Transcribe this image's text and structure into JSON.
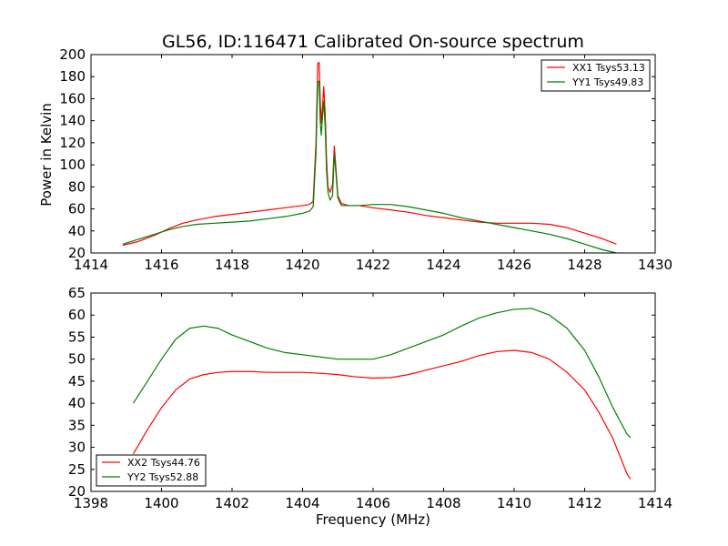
{
  "chart_data": [
    {
      "type": "line",
      "title": "GL56, ID:116471 Calibrated On-source spectrum",
      "xlabel": "",
      "ylabel": "Power in Kelvin",
      "xlim": [
        1414,
        1430
      ],
      "ylim": [
        20,
        200
      ],
      "xticks": [
        1414,
        1416,
        1418,
        1420,
        1422,
        1424,
        1426,
        1428,
        1430
      ],
      "yticks": [
        20,
        40,
        60,
        80,
        100,
        120,
        140,
        160,
        180,
        200
      ],
      "grid": false,
      "legend_position": "top-right",
      "series": [
        {
          "name": "XX1 Tsys53.13",
          "color": "#ff0000",
          "points": [
            [
              1414.9,
              27
            ],
            [
              1415.3,
              30
            ],
            [
              1415.8,
              36
            ],
            [
              1416.2,
              42
            ],
            [
              1416.6,
              47
            ],
            [
              1417,
              50
            ],
            [
              1417.5,
              53
            ],
            [
              1418,
              55
            ],
            [
              1418.5,
              57
            ],
            [
              1419,
              59
            ],
            [
              1419.5,
              61
            ],
            [
              1420,
              63
            ],
            [
              1420.2,
              64
            ],
            [
              1420.3,
              67
            ],
            [
              1420.38,
              120
            ],
            [
              1420.43,
              192
            ],
            [
              1420.47,
              193
            ],
            [
              1420.5,
              160
            ],
            [
              1420.53,
              138
            ],
            [
              1420.57,
              155
            ],
            [
              1420.6,
              171
            ],
            [
              1420.64,
              148
            ],
            [
              1420.68,
              105
            ],
            [
              1420.72,
              80
            ],
            [
              1420.78,
              75
            ],
            [
              1420.85,
              82
            ],
            [
              1420.9,
              117
            ],
            [
              1420.94,
              100
            ],
            [
              1421,
              72
            ],
            [
              1421.1,
              65
            ],
            [
              1421.3,
              63
            ],
            [
              1421.6,
              63
            ],
            [
              1422,
              61
            ],
            [
              1422.5,
              59
            ],
            [
              1423,
              57
            ],
            [
              1423.5,
              54
            ],
            [
              1424,
              52
            ],
            [
              1424.5,
              50
            ],
            [
              1425,
              48
            ],
            [
              1425.5,
              47
            ],
            [
              1426,
              47
            ],
            [
              1426.5,
              47
            ],
            [
              1427,
              46
            ],
            [
              1427.5,
              43
            ],
            [
              1428,
              38
            ],
            [
              1428.5,
              33
            ],
            [
              1428.9,
              28
            ]
          ]
        },
        {
          "name": "YY1 Tsys49.83",
          "color": "#008000",
          "points": [
            [
              1414.9,
              28
            ],
            [
              1415.3,
              32
            ],
            [
              1415.8,
              37
            ],
            [
              1416.2,
              41
            ],
            [
              1416.6,
              44
            ],
            [
              1417,
              46
            ],
            [
              1417.5,
              47
            ],
            [
              1418,
              48
            ],
            [
              1418.5,
              49
            ],
            [
              1419,
              51
            ],
            [
              1419.5,
              53
            ],
            [
              1420,
              56
            ],
            [
              1420.2,
              58
            ],
            [
              1420.3,
              62
            ],
            [
              1420.38,
              110
            ],
            [
              1420.43,
              175
            ],
            [
              1420.47,
              176
            ],
            [
              1420.5,
              140
            ],
            [
              1420.53,
              127
            ],
            [
              1420.57,
              145
            ],
            [
              1420.6,
              158
            ],
            [
              1420.64,
              135
            ],
            [
              1420.68,
              95
            ],
            [
              1420.72,
              75
            ],
            [
              1420.78,
              68
            ],
            [
              1420.85,
              72
            ],
            [
              1420.9,
              110
            ],
            [
              1420.94,
              95
            ],
            [
              1421,
              70
            ],
            [
              1421.1,
              63
            ],
            [
              1421.3,
              63
            ],
            [
              1421.6,
              63
            ],
            [
              1422,
              64
            ],
            [
              1422.5,
              64
            ],
            [
              1423,
              62
            ],
            [
              1423.5,
              59
            ],
            [
              1424,
              56
            ],
            [
              1424.5,
              52
            ],
            [
              1425,
              49
            ],
            [
              1425.5,
              46
            ],
            [
              1426,
              43
            ],
            [
              1426.5,
              40
            ],
            [
              1427,
              37
            ],
            [
              1427.5,
              33
            ],
            [
              1428,
              28
            ],
            [
              1428.5,
              23
            ],
            [
              1428.9,
              20
            ]
          ]
        }
      ]
    },
    {
      "type": "line",
      "title": "",
      "xlabel": "Frequency (MHz)",
      "ylabel": "",
      "xlim": [
        1398,
        1414
      ],
      "ylim": [
        20,
        65
      ],
      "xticks": [
        1398,
        1400,
        1402,
        1404,
        1406,
        1408,
        1410,
        1412,
        1414
      ],
      "yticks": [
        20,
        25,
        30,
        35,
        40,
        45,
        50,
        55,
        60,
        65
      ],
      "grid": false,
      "legend_position": "bottom-left",
      "series": [
        {
          "name": "XX2 Tsys44.76",
          "color": "#ff0000",
          "points": [
            [
              1399.2,
              28.5
            ],
            [
              1399.6,
              34
            ],
            [
              1400,
              39
            ],
            [
              1400.4,
              43
            ],
            [
              1400.8,
              45.5
            ],
            [
              1401.2,
              46.5
            ],
            [
              1401.6,
              47
            ],
            [
              1402,
              47.2
            ],
            [
              1402.5,
              47.2
            ],
            [
              1403,
              47
            ],
            [
              1403.5,
              47
            ],
            [
              1404,
              47
            ],
            [
              1404.5,
              46.8
            ],
            [
              1405,
              46.5
            ],
            [
              1405.5,
              46
            ],
            [
              1406,
              45.7
            ],
            [
              1406.5,
              45.8
            ],
            [
              1407,
              46.5
            ],
            [
              1407.5,
              47.5
            ],
            [
              1408,
              48.5
            ],
            [
              1408.5,
              49.5
            ],
            [
              1409,
              50.8
            ],
            [
              1409.5,
              51.7
            ],
            [
              1410,
              52
            ],
            [
              1410.5,
              51.5
            ],
            [
              1411,
              50
            ],
            [
              1411.5,
              47
            ],
            [
              1412,
              43
            ],
            [
              1412.4,
              38
            ],
            [
              1412.8,
              32
            ],
            [
              1413.2,
              24
            ],
            [
              1413.3,
              22.8
            ]
          ]
        },
        {
          "name": "YY2 Tsys52.88",
          "color": "#008000",
          "points": [
            [
              1399.2,
              40
            ],
            [
              1399.6,
              45
            ],
            [
              1400,
              50
            ],
            [
              1400.4,
              54.5
            ],
            [
              1400.8,
              57
            ],
            [
              1401.2,
              57.5
            ],
            [
              1401.6,
              57
            ],
            [
              1402,
              55.5
            ],
            [
              1402.5,
              54
            ],
            [
              1403,
              52.5
            ],
            [
              1403.5,
              51.5
            ],
            [
              1404,
              51
            ],
            [
              1404.5,
              50.5
            ],
            [
              1405,
              50
            ],
            [
              1405.5,
              50
            ],
            [
              1406,
              50
            ],
            [
              1406.5,
              51
            ],
            [
              1407,
              52.5
            ],
            [
              1407.5,
              54
            ],
            [
              1408,
              55.5
            ],
            [
              1408.5,
              57.5
            ],
            [
              1409,
              59.3
            ],
            [
              1409.5,
              60.5
            ],
            [
              1410,
              61.3
            ],
            [
              1410.5,
              61.5
            ],
            [
              1411,
              60
            ],
            [
              1411.5,
              57
            ],
            [
              1412,
              52
            ],
            [
              1412.4,
              46
            ],
            [
              1412.8,
              39
            ],
            [
              1413.2,
              33
            ],
            [
              1413.3,
              32.2
            ]
          ]
        }
      ]
    }
  ]
}
